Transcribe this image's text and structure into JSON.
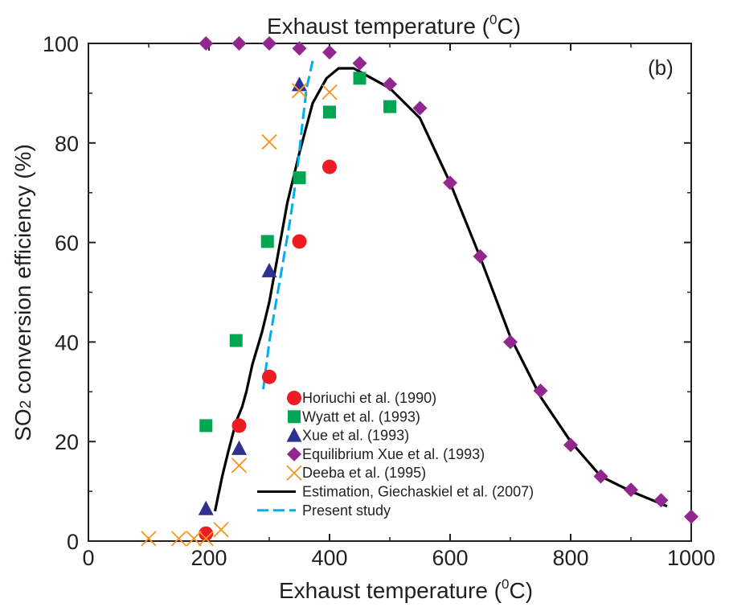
{
  "chart_data": {
    "type": "scatter",
    "panel_label": "(b)",
    "top_axis_label": {
      "text": "Exhaust temperature (",
      "sup": "0",
      "tail": "C)"
    },
    "xlabel": {
      "text": "Exhaust temperature (",
      "sup": "0",
      "tail": "C)"
    },
    "ylabel": {
      "pre": "SO",
      "sub": "2",
      "post": " conversion efficiency (%)"
    },
    "xlim": [
      0,
      1000
    ],
    "ylim": [
      0,
      100
    ],
    "x_ticks": [
      0,
      200,
      400,
      600,
      800,
      1000
    ],
    "y_ticks": [
      0,
      20,
      40,
      60,
      80,
      100
    ],
    "x_tick_labels": [
      "0",
      "200",
      "400",
      "600",
      "800",
      "1000"
    ],
    "y_tick_labels": [
      "0",
      "20",
      "40",
      "60",
      "80",
      "100"
    ],
    "legend_position": "lower-center",
    "series": [
      {
        "name": "Horiuchi et al. (1990)",
        "marker": "circle",
        "color": "#ed1c24",
        "points": [
          [
            195,
            1.5
          ],
          [
            250,
            23.2
          ],
          [
            300,
            33
          ],
          [
            350,
            60.2
          ],
          [
            400,
            75.2
          ]
        ]
      },
      {
        "name": "Wyatt et al. (1993)",
        "marker": "square",
        "color": "#00a651",
        "points": [
          [
            195,
            23.2
          ],
          [
            245,
            40.3
          ],
          [
            297,
            60.2
          ],
          [
            350,
            73
          ],
          [
            400,
            86.2
          ],
          [
            450,
            93
          ],
          [
            500,
            87.3
          ]
        ]
      },
      {
        "name": "Xue et al. (1993)",
        "marker": "triangle",
        "color": "#2e3192",
        "points": [
          [
            195,
            6.5
          ],
          [
            250,
            18.6
          ],
          [
            300,
            54.3
          ],
          [
            350,
            91.7
          ]
        ]
      },
      {
        "name": "Equilibrium Xue et al. (1993)",
        "marker": "diamond",
        "color": "#92278f",
        "points": [
          [
            195,
            100
          ],
          [
            250,
            100
          ],
          [
            300,
            100
          ],
          [
            350,
            99
          ],
          [
            400,
            98.2
          ],
          [
            450,
            96
          ],
          [
            500,
            91.8
          ],
          [
            550,
            87
          ],
          [
            600,
            72
          ],
          [
            650,
            57.2
          ],
          [
            700,
            40
          ],
          [
            750,
            30.2
          ],
          [
            800,
            19.3
          ],
          [
            850,
            13
          ],
          [
            900,
            10.3
          ],
          [
            950,
            8.2
          ],
          [
            1000,
            4.9
          ]
        ]
      },
      {
        "name": "Deeba et al. (1995)",
        "marker": "x",
        "color": "#f7941d",
        "points": [
          [
            100,
            0.5
          ],
          [
            150,
            0.5
          ],
          [
            175,
            0.5
          ],
          [
            195,
            0.5
          ],
          [
            220,
            2.3
          ],
          [
            250,
            15.2
          ],
          [
            300,
            80.2
          ],
          [
            350,
            90.5
          ],
          [
            400,
            90.2
          ]
        ]
      },
      {
        "name": "Estimation, Giechaskiel et al. (2007)",
        "marker": "line",
        "color": "#000000",
        "dash": "solid",
        "points": [
          [
            210,
            6
          ],
          [
            215,
            9
          ],
          [
            222,
            13
          ],
          [
            232,
            18
          ],
          [
            245,
            24
          ],
          [
            255,
            27
          ],
          [
            262,
            30
          ],
          [
            272,
            35.5
          ],
          [
            288,
            42
          ],
          [
            300,
            48
          ],
          [
            315,
            58
          ],
          [
            330,
            68
          ],
          [
            350,
            78
          ],
          [
            372,
            88
          ],
          [
            395,
            93
          ],
          [
            415,
            95
          ],
          [
            440,
            95
          ],
          [
            470,
            93
          ],
          [
            500,
            91
          ],
          [
            550,
            85
          ],
          [
            600,
            72
          ],
          [
            650,
            57
          ],
          [
            700,
            41
          ],
          [
            750,
            29
          ],
          [
            800,
            20
          ],
          [
            850,
            13
          ],
          [
            900,
            10
          ],
          [
            960,
            7
          ]
        ]
      },
      {
        "name": "Present study",
        "marker": "line",
        "color": "#00aeef",
        "dash": "dashed",
        "points": [
          [
            290,
            30.5
          ],
          [
            300,
            40
          ],
          [
            312,
            48.5
          ],
          [
            322,
            55.5
          ],
          [
            334,
            64
          ],
          [
            346,
            74
          ],
          [
            355,
            84
          ],
          [
            362,
            91
          ],
          [
            372,
            96.5
          ]
        ]
      }
    ]
  }
}
